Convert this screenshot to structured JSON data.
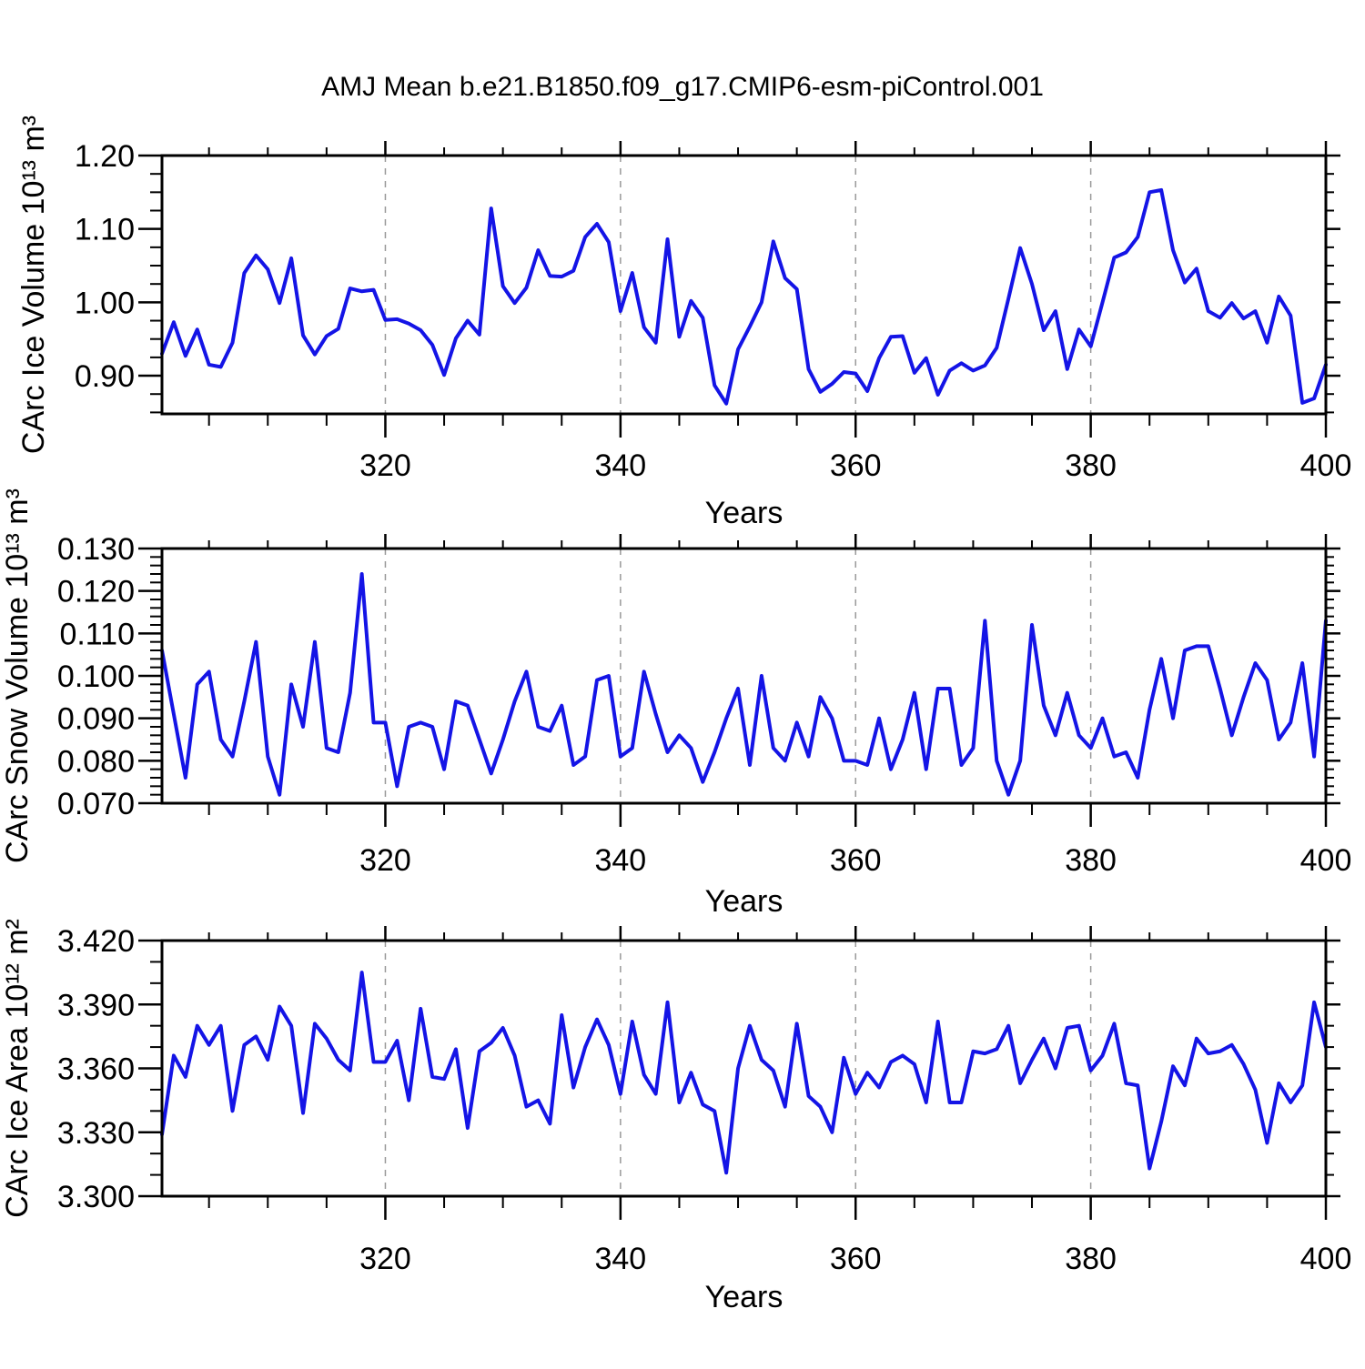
{
  "title": "AMJ Mean b.e21.B1850.f09_g17.CMIP6-esm-piControl.001",
  "colors": {
    "line": "#1414e6",
    "grid": "#999999",
    "axis": "#000000",
    "background": "#ffffff"
  },
  "chart_data": [
    {
      "type": "line",
      "name": "ice-volume",
      "xlabel": "Years",
      "ylabel": "CArc Ice Volume 10¹³ m³",
      "xlim": [
        301,
        400
      ],
      "ylim": [
        0.848,
        1.2
      ],
      "x_start": 301,
      "x_end": 400,
      "xticks": {
        "major": [
          320,
          340,
          360,
          380,
          400
        ],
        "labels": [
          "320",
          "340",
          "360",
          "380",
          "400"
        ],
        "minor_start": 305,
        "minor_step": 5
      },
      "yticks": {
        "major": [
          0.9,
          1.0,
          1.1,
          1.2
        ],
        "labels": [
          "0.90",
          "1.00",
          "1.10",
          "1.20"
        ],
        "minor_step": 0.025
      },
      "grid_x": [
        320,
        340,
        360,
        380
      ],
      "grid_style": "vertical-dashed",
      "legend": null,
      "values": [
        0.93,
        0.973,
        0.927,
        0.963,
        0.915,
        0.912,
        0.945,
        1.04,
        1.064,
        1.045,
        0.999,
        1.06,
        0.955,
        0.929,
        0.954,
        0.964,
        1.019,
        1.015,
        1.017,
        0.976,
        0.977,
        0.971,
        0.962,
        0.942,
        0.901,
        0.951,
        0.975,
        0.956,
        1.128,
        1.022,
        0.999,
        1.02,
        1.071,
        1.036,
        1.035,
        1.043,
        1.089,
        1.107,
        1.082,
        0.988,
        1.04,
        0.966,
        0.945,
        1.086,
        0.953,
        1.002,
        0.979,
        0.887,
        0.862,
        0.936,
        0.967,
        1.0,
        1.083,
        1.033,
        1.018,
        0.909,
        0.878,
        0.889,
        0.905,
        0.903,
        0.879,
        0.924,
        0.953,
        0.954,
        0.904,
        0.924,
        0.874,
        0.907,
        0.917,
        0.907,
        0.914,
        0.938,
        1.005,
        1.074,
        1.025,
        0.962,
        0.988,
        0.909,
        0.963,
        0.94,
        1.0,
        1.061,
        1.068,
        1.089,
        1.15,
        1.153,
        1.071,
        1.027,
        1.046,
        0.988,
        0.979,
        0.999,
        0.978,
        0.988,
        0.945,
        1.008,
        0.982,
        0.863,
        0.869,
        0.915
      ]
    },
    {
      "type": "line",
      "name": "snow-volume",
      "xlabel": "Years",
      "ylabel": "CArc Snow Volume 10¹³ m³",
      "xlim": [
        301,
        400
      ],
      "ylim": [
        0.07,
        0.13
      ],
      "x_start": 301,
      "x_end": 400,
      "xticks": {
        "major": [
          320,
          340,
          360,
          380,
          400
        ],
        "labels": [
          "320",
          "340",
          "360",
          "380",
          "400"
        ],
        "minor_start": 305,
        "minor_step": 5
      },
      "yticks": {
        "major": [
          0.07,
          0.08,
          0.09,
          0.1,
          0.11,
          0.12,
          0.13
        ],
        "labels": [
          "0.070",
          "0.080",
          "0.090",
          "0.100",
          "0.110",
          "0.120",
          "0.130"
        ],
        "minor_step": 0.002
      },
      "grid_x": [
        320,
        340,
        360,
        380
      ],
      "grid_style": "vertical-dashed",
      "legend": null,
      "values": [
        0.106,
        0.091,
        0.076,
        0.098,
        0.101,
        0.085,
        0.081,
        0.094,
        0.108,
        0.081,
        0.072,
        0.098,
        0.088,
        0.108,
        0.083,
        0.082,
        0.096,
        0.124,
        0.089,
        0.089,
        0.074,
        0.088,
        0.089,
        0.088,
        0.078,
        0.094,
        0.093,
        0.085,
        0.077,
        0.085,
        0.094,
        0.101,
        0.088,
        0.087,
        0.093,
        0.079,
        0.081,
        0.099,
        0.1,
        0.081,
        0.083,
        0.101,
        0.091,
        0.082,
        0.086,
        0.083,
        0.075,
        0.082,
        0.09,
        0.097,
        0.079,
        0.1,
        0.083,
        0.08,
        0.089,
        0.081,
        0.095,
        0.09,
        0.08,
        0.08,
        0.079,
        0.09,
        0.078,
        0.085,
        0.096,
        0.078,
        0.097,
        0.097,
        0.079,
        0.083,
        0.113,
        0.08,
        0.072,
        0.08,
        0.112,
        0.093,
        0.086,
        0.096,
        0.086,
        0.083,
        0.09,
        0.081,
        0.082,
        0.076,
        0.092,
        0.104,
        0.09,
        0.106,
        0.107,
        0.107,
        0.097,
        0.086,
        0.095,
        0.103,
        0.099,
        0.085,
        0.089,
        0.103,
        0.081,
        0.113
      ]
    },
    {
      "type": "line",
      "name": "ice-area",
      "xlabel": "Years",
      "ylabel": "CArc Ice Area 10¹² m²",
      "xlim": [
        301,
        400
      ],
      "ylim": [
        3.3,
        3.42
      ],
      "x_start": 301,
      "x_end": 400,
      "xticks": {
        "major": [
          320,
          340,
          360,
          380,
          400
        ],
        "labels": [
          "320",
          "340",
          "360",
          "380",
          "400"
        ],
        "minor_start": 305,
        "minor_step": 5
      },
      "yticks": {
        "major": [
          3.3,
          3.33,
          3.36,
          3.39,
          3.42
        ],
        "labels": [
          "3.300",
          "3.330",
          "3.360",
          "3.390",
          "3.420"
        ],
        "minor_step": 0.01
      },
      "grid_x": [
        320,
        340,
        360,
        380
      ],
      "grid_style": "vertical-dashed",
      "legend": null,
      "values": [
        3.329,
        3.366,
        3.356,
        3.38,
        3.371,
        3.38,
        3.34,
        3.371,
        3.375,
        3.364,
        3.389,
        3.38,
        3.339,
        3.381,
        3.374,
        3.364,
        3.359,
        3.405,
        3.363,
        3.363,
        3.373,
        3.345,
        3.388,
        3.356,
        3.355,
        3.369,
        3.332,
        3.368,
        3.372,
        3.379,
        3.366,
        3.342,
        3.345,
        3.334,
        3.385,
        3.351,
        3.37,
        3.383,
        3.371,
        3.348,
        3.382,
        3.357,
        3.348,
        3.391,
        3.344,
        3.358,
        3.343,
        3.34,
        3.311,
        3.36,
        3.38,
        3.364,
        3.359,
        3.342,
        3.381,
        3.347,
        3.342,
        3.33,
        3.365,
        3.348,
        3.358,
        3.351,
        3.363,
        3.366,
        3.362,
        3.344,
        3.382,
        3.344,
        3.344,
        3.368,
        3.367,
        3.369,
        3.38,
        3.353,
        3.364,
        3.374,
        3.36,
        3.379,
        3.38,
        3.359,
        3.366,
        3.381,
        3.353,
        3.352,
        3.313,
        3.335,
        3.361,
        3.352,
        3.374,
        3.367,
        3.368,
        3.371,
        3.362,
        3.35,
        3.325,
        3.353,
        3.344,
        3.352,
        3.391,
        3.37
      ]
    }
  ]
}
